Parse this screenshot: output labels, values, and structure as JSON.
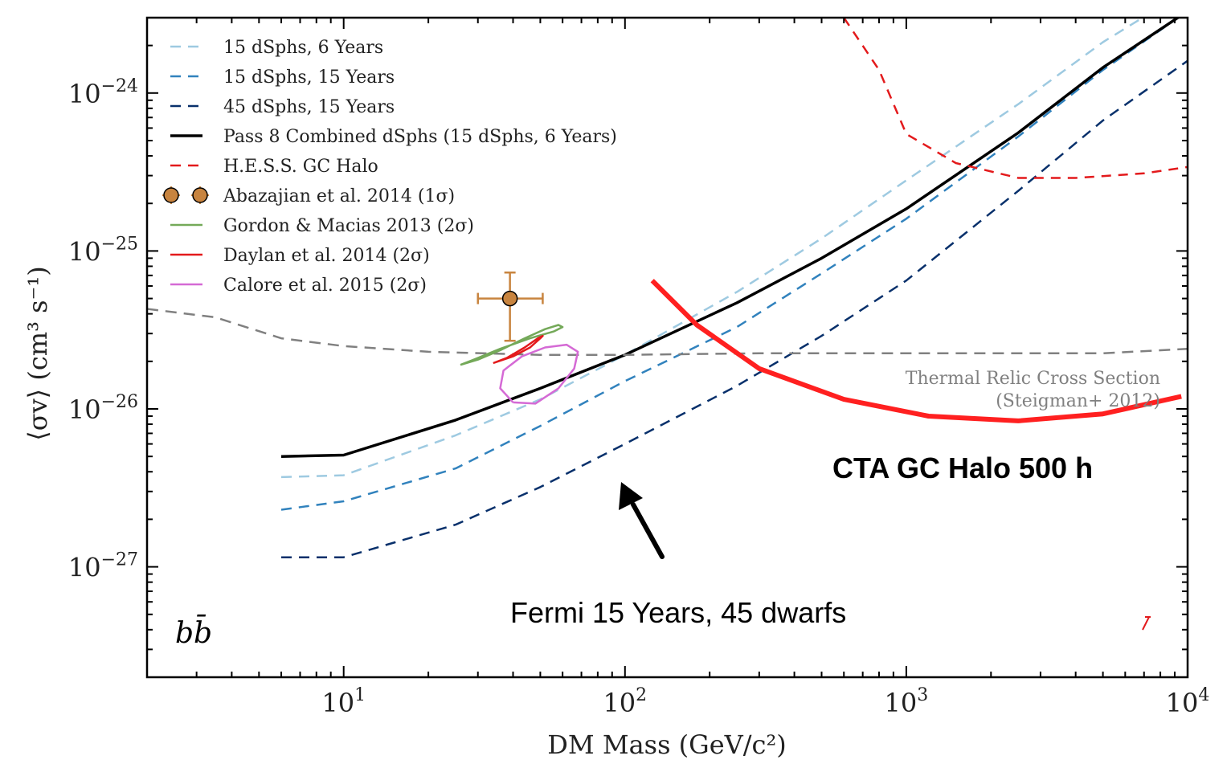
{
  "chart_data": {
    "type": "line",
    "xscale": "log",
    "yscale": "log",
    "xlim": [
      2,
      10000
    ],
    "ylim": [
      2e-28,
      3e-24
    ],
    "xlabel": "DM Mass (GeV/c²)",
    "ylabel": "⟨σv⟩ (cm³ s⁻¹)",
    "channel_label": "bb̄",
    "x_ticks": [
      {
        "value": 10,
        "base": "10",
        "exp": "1"
      },
      {
        "value": 100,
        "base": "10",
        "exp": "2"
      },
      {
        "value": 1000,
        "base": "10",
        "exp": "3"
      },
      {
        "value": 10000,
        "base": "10",
        "exp": "4"
      }
    ],
    "y_ticks": [
      {
        "value": 1e-24,
        "base": "10",
        "exp": "−24"
      },
      {
        "value": 1e-25,
        "base": "10",
        "exp": "−25"
      },
      {
        "value": 1e-26,
        "base": "10",
        "exp": "−26"
      },
      {
        "value": 1e-27,
        "base": "10",
        "exp": "−27"
      }
    ],
    "series": [
      {
        "name": "15 dSphs, 6 Years",
        "color": "#9ecae1",
        "style": "dashed",
        "x": [
          6,
          10,
          25,
          50,
          100,
          250,
          500,
          1000,
          2500,
          5000,
          10000
        ],
        "y": [
          3.7e-27,
          3.8e-27,
          6.8e-27,
          1.15e-26,
          2.2e-26,
          5.5e-26,
          1.2e-25,
          2.8e-25,
          8.5e-25,
          2.1e-24,
          4.5e-24
        ]
      },
      {
        "name": "15 dSphs, 15 Years",
        "color": "#3182bd",
        "style": "dashed",
        "x": [
          6,
          10,
          25,
          50,
          100,
          250,
          500,
          1000,
          2500,
          5000,
          10000
        ],
        "y": [
          2.3e-27,
          2.6e-27,
          4.2e-27,
          7.8e-27,
          1.5e-26,
          3.3e-26,
          7.2e-26,
          1.6e-25,
          5.3e-25,
          1.4e-24,
          3.3e-24
        ]
      },
      {
        "name": "45 dSphs, 15 Years",
        "color": "#08306b",
        "style": "dashed",
        "x": [
          6,
          10,
          25,
          50,
          100,
          250,
          500,
          1000,
          2500,
          5000,
          10000
        ],
        "y": [
          1.15e-27,
          1.15e-27,
          1.85e-27,
          3.2e-27,
          6e-27,
          1.4e-26,
          2.9e-26,
          6.5e-26,
          2.4e-25,
          6.7e-25,
          1.6e-24
        ]
      },
      {
        "name": "Pass 8 Combined dSphs (15 dSphs, 6 Years)",
        "color": "#000000",
        "style": "solid",
        "x": [
          6,
          10,
          25,
          50,
          100,
          250,
          500,
          1000,
          2500,
          5000,
          10000
        ],
        "y": [
          5e-27,
          5.1e-27,
          8.5e-27,
          1.35e-26,
          2.2e-26,
          4.7e-26,
          9e-26,
          1.85e-25,
          5.6e-25,
          1.45e-24,
          3.3e-24
        ]
      },
      {
        "name": "H.E.S.S. GC Halo",
        "color": "#e31a1c",
        "style": "dashed",
        "x": [
          600,
          800,
          1000,
          1500,
          2500,
          4000,
          7000,
          10000
        ],
        "y": [
          3e-24,
          1.4e-24,
          5.5e-25,
          3.6e-25,
          2.9e-25,
          2.9e-25,
          3.1e-25,
          3.4e-25
        ]
      },
      {
        "name": "Thermal Relic Cross Section",
        "color": "#808080",
        "style": "dashed",
        "x": [
          2,
          3.5,
          6,
          10,
          20,
          50,
          100,
          300,
          1000,
          5000,
          10000
        ],
        "y": [
          4.3e-26,
          3.8e-26,
          2.8e-26,
          2.5e-26,
          2.3e-26,
          2.2e-26,
          2.2e-26,
          2.25e-26,
          2.25e-26,
          2.25e-26,
          2.4e-26
        ]
      },
      {
        "name": "CTA GC Halo 500 h",
        "color": "#ff2020",
        "style": "solid",
        "x": [
          125,
          180,
          300,
          600,
          1200,
          2500,
          5000,
          9500
        ],
        "y": [
          6.5e-26,
          3.4e-26,
          1.8e-26,
          1.15e-26,
          9e-27,
          8.4e-27,
          9.3e-27,
          1.2e-26
        ]
      }
    ],
    "points": [
      {
        "name": "Abazajian et al. 2014 (1σ)",
        "x": 39,
        "y": 5e-26,
        "x_err": [
          30,
          51
        ],
        "y_err": [
          2.7e-26,
          7.3e-26
        ],
        "color": "#c8843f"
      }
    ],
    "contours": [
      {
        "name": "Gordon & Macias 2013 (2σ)",
        "color": "#74a959",
        "x": [
          26,
          30,
          36,
          44,
          52,
          58,
          60,
          56,
          46,
          36,
          29,
          26
        ],
        "y": [
          1.9e-26,
          2.05e-26,
          2.35e-26,
          2.8e-26,
          3.2e-26,
          3.4e-26,
          3.3e-26,
          3.1e-26,
          2.8e-26,
          2.4e-26,
          2.05e-26,
          1.9e-26
        ]
      },
      {
        "name": "Daylan et al. 2014 (2σ)",
        "color": "#e31a1c",
        "x": [
          34,
          40,
          46,
          50,
          51,
          49,
          44,
          38,
          34
        ],
        "y": [
          1.95e-26,
          2.15e-26,
          2.45e-26,
          2.8e-26,
          2.9e-26,
          2.8e-26,
          2.45e-26,
          2.1e-26,
          1.95e-26
        ]
      },
      {
        "name": "Calore et al. 2015 (2σ)",
        "color": "#d56ad5",
        "x": [
          40,
          36,
          37,
          43,
          52,
          62,
          68,
          66,
          58,
          48,
          40
        ],
        "y": [
          1.1e-26,
          1.35e-26,
          1.75e-26,
          2.15e-26,
          2.45e-26,
          2.55e-26,
          2.3e-26,
          1.8e-26,
          1.35e-26,
          1.08e-26,
          1.1e-26
        ]
      }
    ],
    "legend": {
      "placement": "top-left",
      "entries": [
        {
          "label": "15 dSphs, 6 Years",
          "color": "#9ecae1",
          "kind": "dashed"
        },
        {
          "label": "15 dSphs, 15 Years",
          "color": "#3182bd",
          "kind": "dashed"
        },
        {
          "label": "45 dSphs, 15 Years",
          "color": "#08306b",
          "kind": "dashed"
        },
        {
          "label": "Pass 8 Combined dSphs (15 dSphs, 6 Years)",
          "color": "#000000",
          "kind": "solid"
        },
        {
          "label": "H.E.S.S. GC Halo",
          "color": "#e31a1c",
          "kind": "dashed"
        },
        {
          "label": "Abazajian et al. 2014 (1σ)",
          "color": "#c8843f",
          "kind": "point"
        },
        {
          "label": "Gordon & Macias 2013 (2σ)",
          "color": "#74a959",
          "kind": "solid"
        },
        {
          "label": "Daylan et al. 2014 (2σ)",
          "color": "#e31a1c",
          "kind": "solid"
        },
        {
          "label": "Calore et al. 2015 (2σ)",
          "color": "#d56ad5",
          "kind": "solid"
        }
      ]
    },
    "annotations": {
      "thermal_line1": "Thermal Relic Cross Section",
      "thermal_line2": "(Steigman+ 2012)",
      "cta_label": "CTA GC Halo 500 h",
      "fermi_label": "Fermi 15 Years, 45 dwarfs"
    }
  }
}
